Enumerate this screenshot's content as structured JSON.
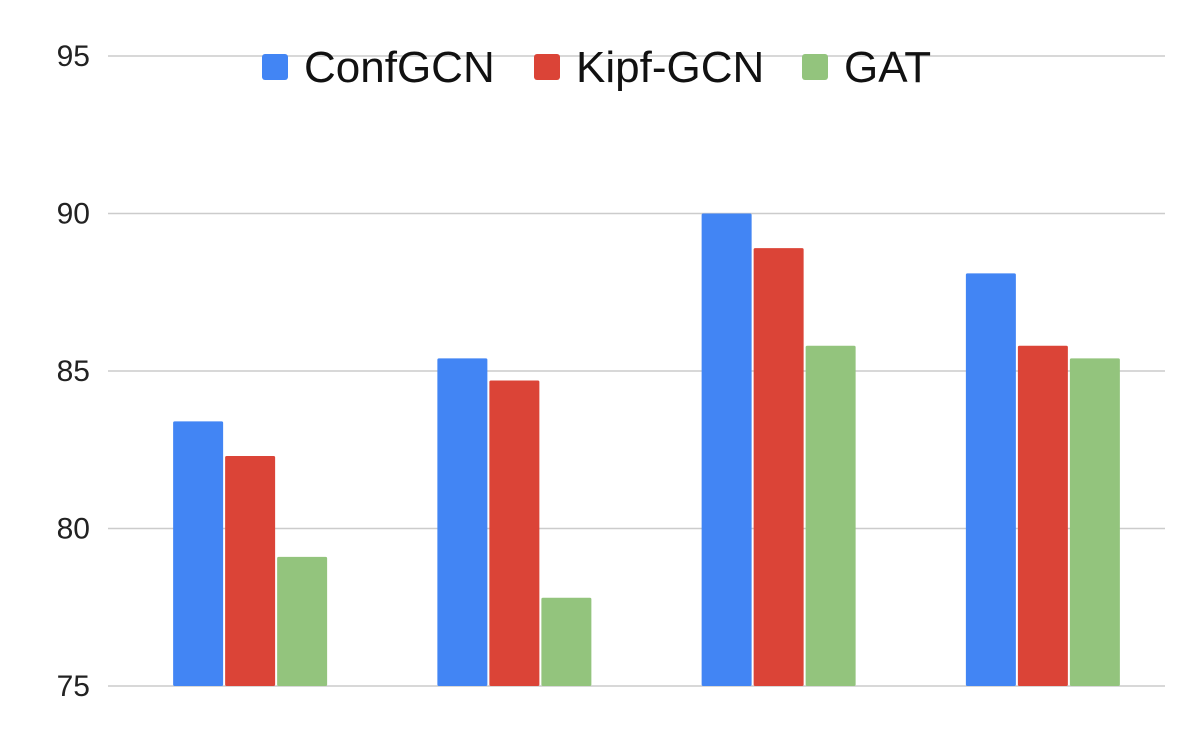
{
  "chart_data": {
    "type": "bar",
    "title": "",
    "xlabel": "",
    "ylabel": "",
    "categories": [
      "",
      "",
      "",
      ""
    ],
    "series": [
      {
        "name": "ConfGCN",
        "color": "#4285f4",
        "values": [
          83.4,
          85.4,
          90.0,
          88.1
        ]
      },
      {
        "name": "Kipf-GCN",
        "color": "#db4437",
        "values": [
          82.3,
          84.7,
          88.9,
          85.8
        ]
      },
      {
        "name": "GAT",
        "color": "#93c47d",
        "values": [
          79.1,
          77.8,
          85.8,
          85.4
        ]
      }
    ],
    "ylim": [
      75,
      95
    ],
    "yticks": [
      "75",
      "80",
      "85",
      "90",
      "95"
    ],
    "grid": true,
    "legend_position": "top-center"
  }
}
